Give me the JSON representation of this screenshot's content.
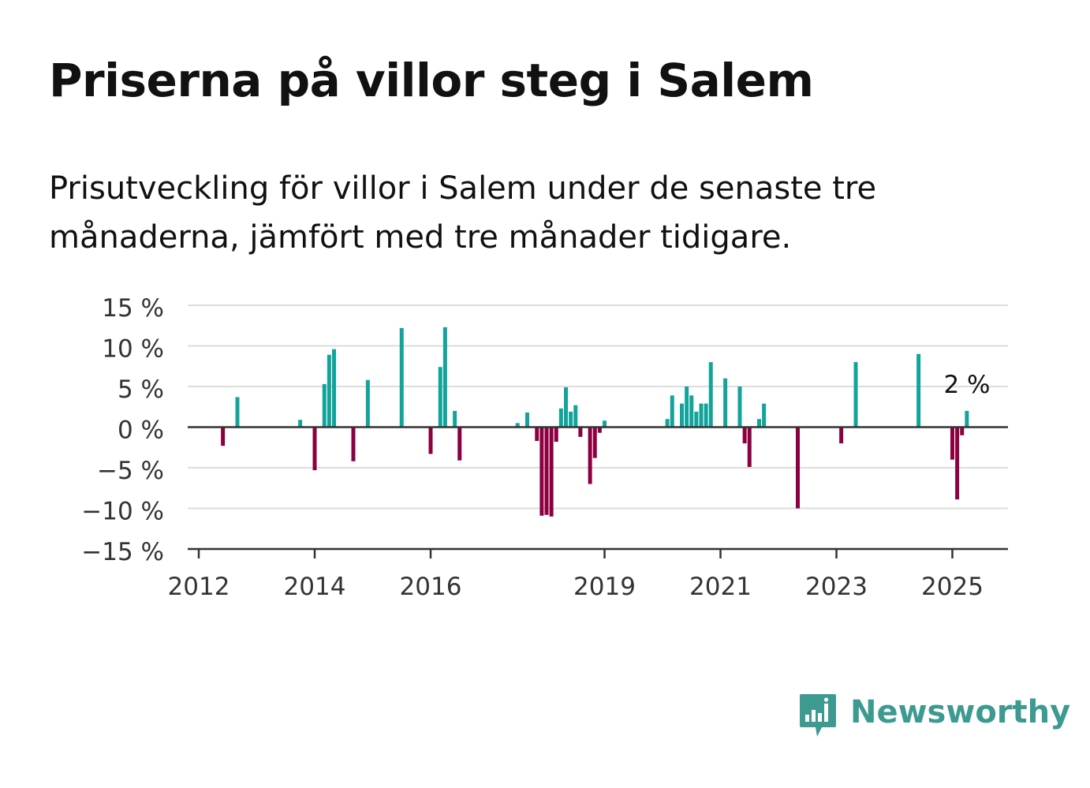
{
  "title": "Priserna på villor steg i Salem",
  "subtitle": "Prisutveckling för villor i Salem under de senaste tre månaderna, jämfört med tre månader tidigare.",
  "brand": {
    "name": "Newsworthy",
    "icon": "newsworthy-logo-icon",
    "color": "#3d9a90"
  },
  "colors": {
    "positive": "#12a49b",
    "negative": "#8c0041",
    "grid": "#dddddd",
    "axis": "#333333"
  },
  "chart_data": {
    "type": "bar",
    "unit": "%",
    "ylim": [
      -15,
      15
    ],
    "yticks": [
      15,
      10,
      5,
      0,
      -5,
      -10,
      -15
    ],
    "ytick_labels": [
      "15 %",
      "10 %",
      "5 %",
      "0 %",
      "−5 %",
      "−10 %",
      "−15 %"
    ],
    "xlim": [
      "2012-01",
      "2025-06"
    ],
    "xticks": [
      "2012-01",
      "2014-01",
      "2016-01",
      "2019-01",
      "2021-01",
      "2023-01",
      "2025-01"
    ],
    "xtick_labels": [
      "2012",
      "2014",
      "2016",
      "2019",
      "2021",
      "2023",
      "2025"
    ],
    "grid": true,
    "annotation": {
      "text": "2 %",
      "date": "2025-03"
    },
    "data": [
      {
        "date": "2012-06",
        "value": -2.3
      },
      {
        "date": "2012-09",
        "value": 3.7
      },
      {
        "date": "2013-10",
        "value": 0.9
      },
      {
        "date": "2014-01",
        "value": -5.3
      },
      {
        "date": "2014-03",
        "value": 5.3
      },
      {
        "date": "2014-04",
        "value": 8.9
      },
      {
        "date": "2014-05",
        "value": 9.6
      },
      {
        "date": "2014-09",
        "value": -4.2
      },
      {
        "date": "2014-12",
        "value": 5.8
      },
      {
        "date": "2015-07",
        "value": 12.2
      },
      {
        "date": "2016-01",
        "value": -3.3
      },
      {
        "date": "2016-03",
        "value": 7.4
      },
      {
        "date": "2016-04",
        "value": 12.3
      },
      {
        "date": "2016-06",
        "value": 2.0
      },
      {
        "date": "2016-07",
        "value": -4.1
      },
      {
        "date": "2017-07",
        "value": 0.5
      },
      {
        "date": "2017-09",
        "value": 1.8
      },
      {
        "date": "2017-11",
        "value": -1.7
      },
      {
        "date": "2017-12",
        "value": -10.9
      },
      {
        "date": "2018-01",
        "value": -10.8
      },
      {
        "date": "2018-02",
        "value": -11.0
      },
      {
        "date": "2018-03",
        "value": -1.8
      },
      {
        "date": "2018-04",
        "value": 2.3
      },
      {
        "date": "2018-05",
        "value": 4.9
      },
      {
        "date": "2018-06",
        "value": 1.9
      },
      {
        "date": "2018-07",
        "value": 2.7
      },
      {
        "date": "2018-08",
        "value": -1.2
      },
      {
        "date": "2018-10",
        "value": -7.0
      },
      {
        "date": "2018-11",
        "value": -3.8
      },
      {
        "date": "2018-12",
        "value": -0.7
      },
      {
        "date": "2019-01",
        "value": 0.8
      },
      {
        "date": "2020-02",
        "value": 1.0
      },
      {
        "date": "2020-03",
        "value": 3.9
      },
      {
        "date": "2020-05",
        "value": 2.9
      },
      {
        "date": "2020-06",
        "value": 5.0
      },
      {
        "date": "2020-07",
        "value": 3.9
      },
      {
        "date": "2020-08",
        "value": 1.9
      },
      {
        "date": "2020-09",
        "value": 2.9
      },
      {
        "date": "2020-10",
        "value": 2.9
      },
      {
        "date": "2020-11",
        "value": 8.0
      },
      {
        "date": "2021-02",
        "value": 6.0
      },
      {
        "date": "2021-05",
        "value": 5.0
      },
      {
        "date": "2021-06",
        "value": -2.0
      },
      {
        "date": "2021-07",
        "value": -4.9
      },
      {
        "date": "2021-09",
        "value": 1.0
      },
      {
        "date": "2021-10",
        "value": 2.9
      },
      {
        "date": "2022-05",
        "value": -10.0
      },
      {
        "date": "2023-02",
        "value": -2.0
      },
      {
        "date": "2023-05",
        "value": 8.0
      },
      {
        "date": "2024-06",
        "value": 9.0
      },
      {
        "date": "2025-01",
        "value": -4.0
      },
      {
        "date": "2025-02",
        "value": -8.9
      },
      {
        "date": "2025-03",
        "value": -1.0
      },
      {
        "date": "2025-04",
        "value": 2.0
      }
    ]
  }
}
